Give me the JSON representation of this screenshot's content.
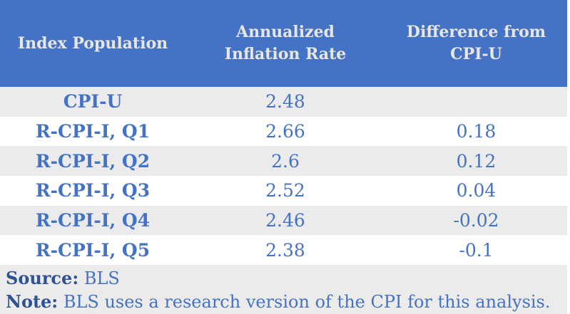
{
  "table": {
    "columns": [
      {
        "label": "Index Population"
      },
      {
        "label": "Annualized Inflation Rate"
      },
      {
        "label": "Difference from CPI-U"
      }
    ],
    "rows": [
      {
        "population": "CPI-U",
        "rate": "2.48",
        "diff": ""
      },
      {
        "population": "R-CPI-I, Q1",
        "rate": "2.66",
        "diff": "0.18"
      },
      {
        "population": "R-CPI-I, Q2",
        "rate": "2.6",
        "diff": "0.12"
      },
      {
        "population": "R-CPI-I, Q3",
        "rate": "2.52",
        "diff": "0.04"
      },
      {
        "population": "R-CPI-I, Q4",
        "rate": "2.46",
        "diff": "-0.02"
      },
      {
        "population": "R-CPI-I, Q5",
        "rate": "2.38",
        "diff": "-0.1"
      }
    ]
  },
  "footer": {
    "source_label": "Source:",
    "source_value": "BLS",
    "note_label": "Note:",
    "note_value": "BLS uses a research version of the CPI for this analysis."
  },
  "colors": {
    "header_bg": "#4473c5",
    "header_text": "#e8e6e3",
    "row_alt_bg": "#ebebeb",
    "row_bg": "#ffffff",
    "cell_text": "#4473c5",
    "footer_label_text": "#2e5394"
  },
  "chart_data": {
    "type": "table",
    "columns": [
      "Index Population",
      "Annualized Inflation Rate",
      "Difference from CPI-U"
    ],
    "rows": [
      [
        "CPI-U",
        2.48,
        null
      ],
      [
        "R-CPI-I, Q1",
        2.66,
        0.18
      ],
      [
        "R-CPI-I, Q2",
        2.6,
        0.12
      ],
      [
        "R-CPI-I, Q3",
        2.52,
        0.04
      ],
      [
        "R-CPI-I, Q4",
        2.46,
        -0.02
      ],
      [
        "R-CPI-I, Q5",
        2.38,
        -0.1
      ]
    ],
    "source": "BLS",
    "note": "BLS uses a research version of the CPI for this analysis."
  }
}
